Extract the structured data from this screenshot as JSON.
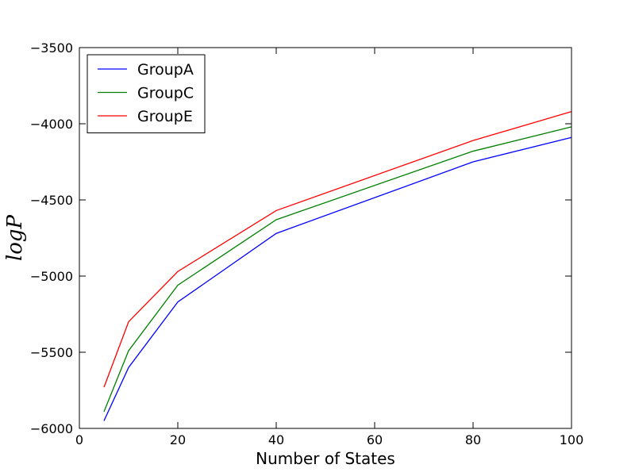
{
  "chart_data": {
    "type": "line",
    "title": "",
    "xlabel": "Number of States",
    "ylabel": "logP",
    "xlim": [
      0,
      100
    ],
    "ylim": [
      -6000,
      -3500
    ],
    "xticks": [
      0,
      20,
      40,
      60,
      80,
      100
    ],
    "yticks": [
      -6000,
      -5500,
      -5000,
      -4500,
      -4000,
      -3500
    ],
    "x": [
      5,
      10,
      20,
      40,
      80,
      100
    ],
    "series": [
      {
        "name": "GroupA",
        "color": "#0000ff",
        "values": [
          -5950,
          -5600,
          -5170,
          -4720,
          -4250,
          -4090
        ]
      },
      {
        "name": "GroupC",
        "color": "#008000",
        "values": [
          -5890,
          -5490,
          -5060,
          -4630,
          -4180,
          -4020
        ]
      },
      {
        "name": "GroupE",
        "color": "#ff0000",
        "values": [
          -5730,
          -5300,
          -4970,
          -4570,
          -4110,
          -3920
        ]
      }
    ],
    "legend": {
      "position": "top-left"
    },
    "grid": false
  }
}
